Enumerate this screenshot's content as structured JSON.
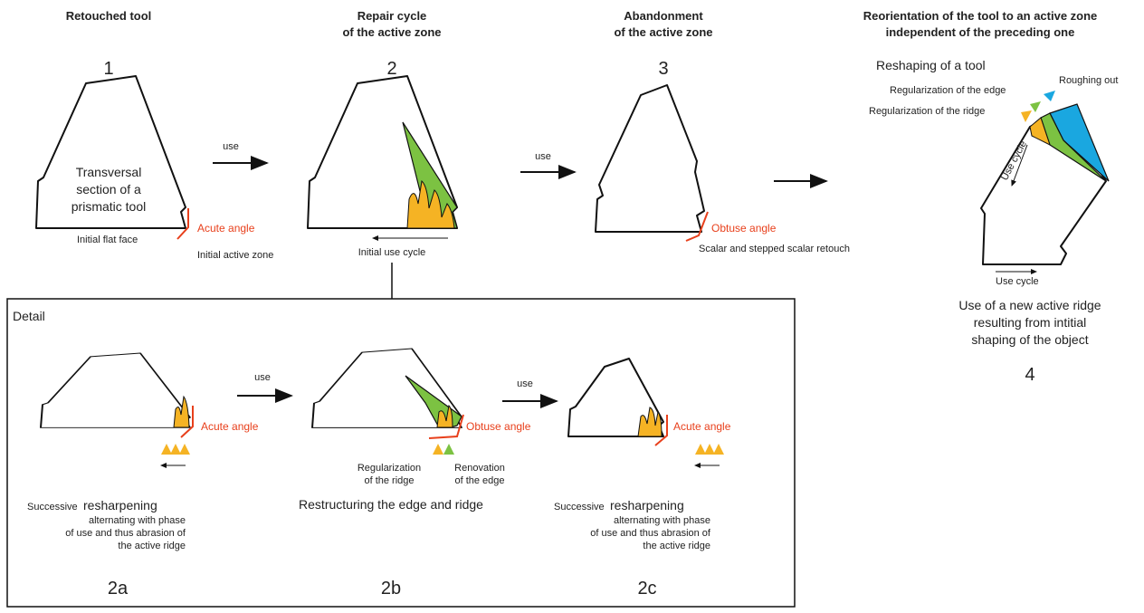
{
  "stage1": {
    "title": "Retouched tool",
    "number": "1",
    "section_lines": [
      "Transversal",
      "section of a",
      "prismatic tool"
    ],
    "angle": "Acute angle",
    "face": "Initial flat face",
    "zone": "Initial active zone"
  },
  "arrow1": "use",
  "stage2": {
    "title_lines": [
      "Repair cycle",
      "of the active zone"
    ],
    "number": "2",
    "cycle": "Initial use cycle"
  },
  "arrow2": "use",
  "stage3": {
    "title_lines": [
      "Abandonment",
      "of the active zone"
    ],
    "number": "3",
    "angle": "Obtuse angle",
    "retouch": "Scalar and stepped scalar retouch"
  },
  "stage4": {
    "title_lines": [
      "Reorientation of the tool to an active zone",
      "independent of the preceding one"
    ],
    "reshaping": "Reshaping of a tool",
    "edge": "Regularization of the edge",
    "roughing": "Roughing out",
    "ridge": "Regularization of the ridge",
    "cycle_vertical": "Use cycle",
    "cycle_horizontal": "Use cycle",
    "caption_lines": [
      "Use of a new active ridge",
      "resulting from intitial",
      "shaping of the object"
    ],
    "number": "4"
  },
  "detail": {
    "title": "Detail",
    "stage2a": {
      "angle": "Acute angle",
      "lead": "Successive",
      "keyword": "resharpening",
      "lines": [
        "alternating with phase",
        "of use and thus abrasion of",
        "the active ridge"
      ],
      "number": "2a"
    },
    "arrow1": "use",
    "stage2b": {
      "angle": "Obtuse angle",
      "ridge_lines": [
        "Regularization",
        "of the ridge"
      ],
      "edge_lines": [
        "Renovation",
        "of the edge"
      ],
      "caption": "Restructuring the edge and ridge",
      "number": "2b"
    },
    "arrow2": "use",
    "stage2c": {
      "angle": "Acute angle",
      "lead": "Successive",
      "keyword": "resharpening",
      "lines": [
        "alternating with phase",
        "of use and thus abrasion of",
        "the active ridge"
      ],
      "number": "2c"
    }
  }
}
